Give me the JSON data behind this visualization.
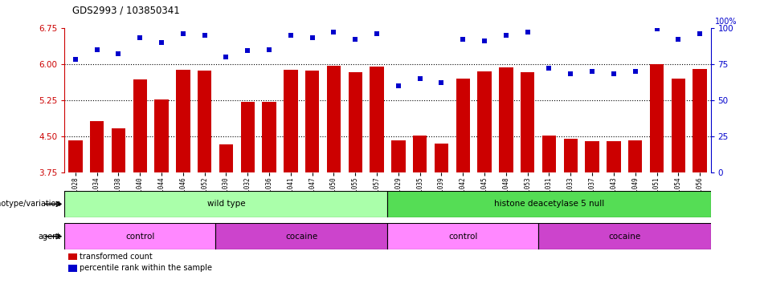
{
  "title": "GDS2993 / 103850341",
  "samples": [
    "GSM231028",
    "GSM231034",
    "GSM231038",
    "GSM231040",
    "GSM231044",
    "GSM231046",
    "GSM231052",
    "GSM231030",
    "GSM231032",
    "GSM231036",
    "GSM231041",
    "GSM231047",
    "GSM231050",
    "GSM231055",
    "GSM231057",
    "GSM231029",
    "GSM231035",
    "GSM231039",
    "GSM231042",
    "GSM231045",
    "GSM231048",
    "GSM231053",
    "GSM231031",
    "GSM231033",
    "GSM231037",
    "GSM231043",
    "GSM231049",
    "GSM231051",
    "GSM231054",
    "GSM231056"
  ],
  "bar_values": [
    4.42,
    4.82,
    4.67,
    5.68,
    5.27,
    5.88,
    5.86,
    4.34,
    5.21,
    5.22,
    5.88,
    5.86,
    5.96,
    5.83,
    5.95,
    4.42,
    4.52,
    4.35,
    5.7,
    5.84,
    5.93,
    5.83,
    4.52,
    4.45,
    4.4,
    4.4,
    4.42,
    6.0,
    5.7,
    5.9
  ],
  "dot_values": [
    78,
    85,
    82,
    93,
    90,
    96,
    95,
    80,
    84,
    85,
    95,
    93,
    97,
    92,
    96,
    60,
    65,
    62,
    92,
    91,
    95,
    97,
    72,
    68,
    70,
    68,
    70,
    99,
    92,
    96
  ],
  "bar_color": "#cc0000",
  "dot_color": "#0000cc",
  "ylim_left": [
    3.75,
    6.75
  ],
  "ylim_right": [
    0,
    100
  ],
  "yticks_left": [
    3.75,
    4.5,
    5.25,
    6.0,
    6.75
  ],
  "yticks_right": [
    0,
    25,
    50,
    75,
    100
  ],
  "hlines": [
    6.0,
    5.25,
    4.5
  ],
  "genotype_groups": [
    {
      "label": "wild type",
      "start": 0,
      "end": 15,
      "color": "#aaffaa"
    },
    {
      "label": "histone deacetylase 5 null",
      "start": 15,
      "end": 30,
      "color": "#55dd55"
    }
  ],
  "agent_groups": [
    {
      "label": "control",
      "start": 0,
      "end": 7,
      "color": "#ff88ff"
    },
    {
      "label": "cocaine",
      "start": 7,
      "end": 15,
      "color": "#cc44cc"
    },
    {
      "label": "control",
      "start": 15,
      "end": 22,
      "color": "#ff88ff"
    },
    {
      "label": "cocaine",
      "start": 22,
      "end": 30,
      "color": "#cc44cc"
    }
  ],
  "legend_items": [
    {
      "label": "transformed count",
      "color": "#cc0000"
    },
    {
      "label": "percentile rank within the sample",
      "color": "#0000cc"
    }
  ],
  "background_color": "#ffffff",
  "plot_bg_color": "#ffffff",
  "left_axis_color": "#cc0000",
  "right_axis_color": "#0000cc",
  "fig_width": 9.46,
  "fig_height": 3.84,
  "dpi": 100
}
